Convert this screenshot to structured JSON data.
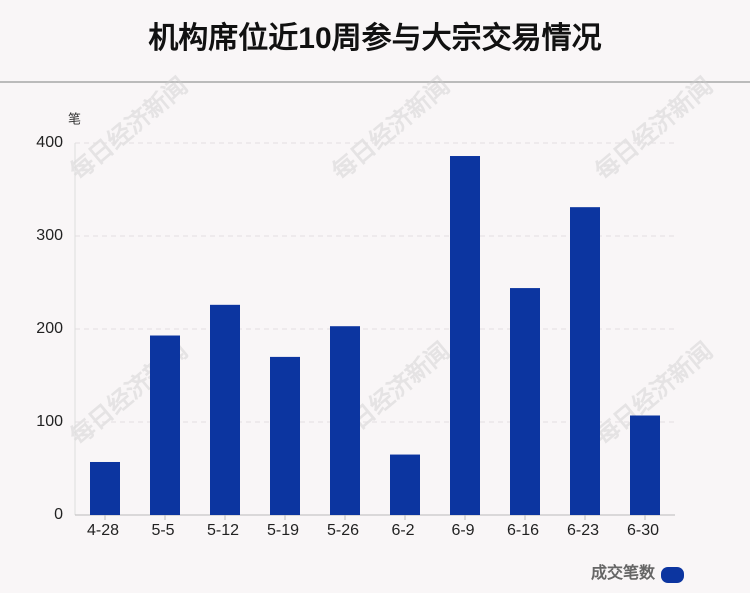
{
  "chart_data": {
    "type": "bar",
    "title": "机构席位近10周参与大宗交易情况",
    "y_label": "笔",
    "watermark": "每日经济新闻",
    "categories": [
      "4-28",
      "5-5",
      "5-12",
      "5-19",
      "5-26",
      "6-2",
      "6-9",
      "6-16",
      "6-23",
      "6-30"
    ],
    "series": [
      {
        "name": "成交笔数",
        "color": "#0c35a0",
        "values": [
          57,
          193,
          226,
          170,
          203,
          65,
          386,
          244,
          331,
          107
        ]
      }
    ],
    "ylim": [
      0,
      400
    ],
    "yticks": [
      0,
      100,
      200,
      300,
      400
    ],
    "grid": true
  }
}
